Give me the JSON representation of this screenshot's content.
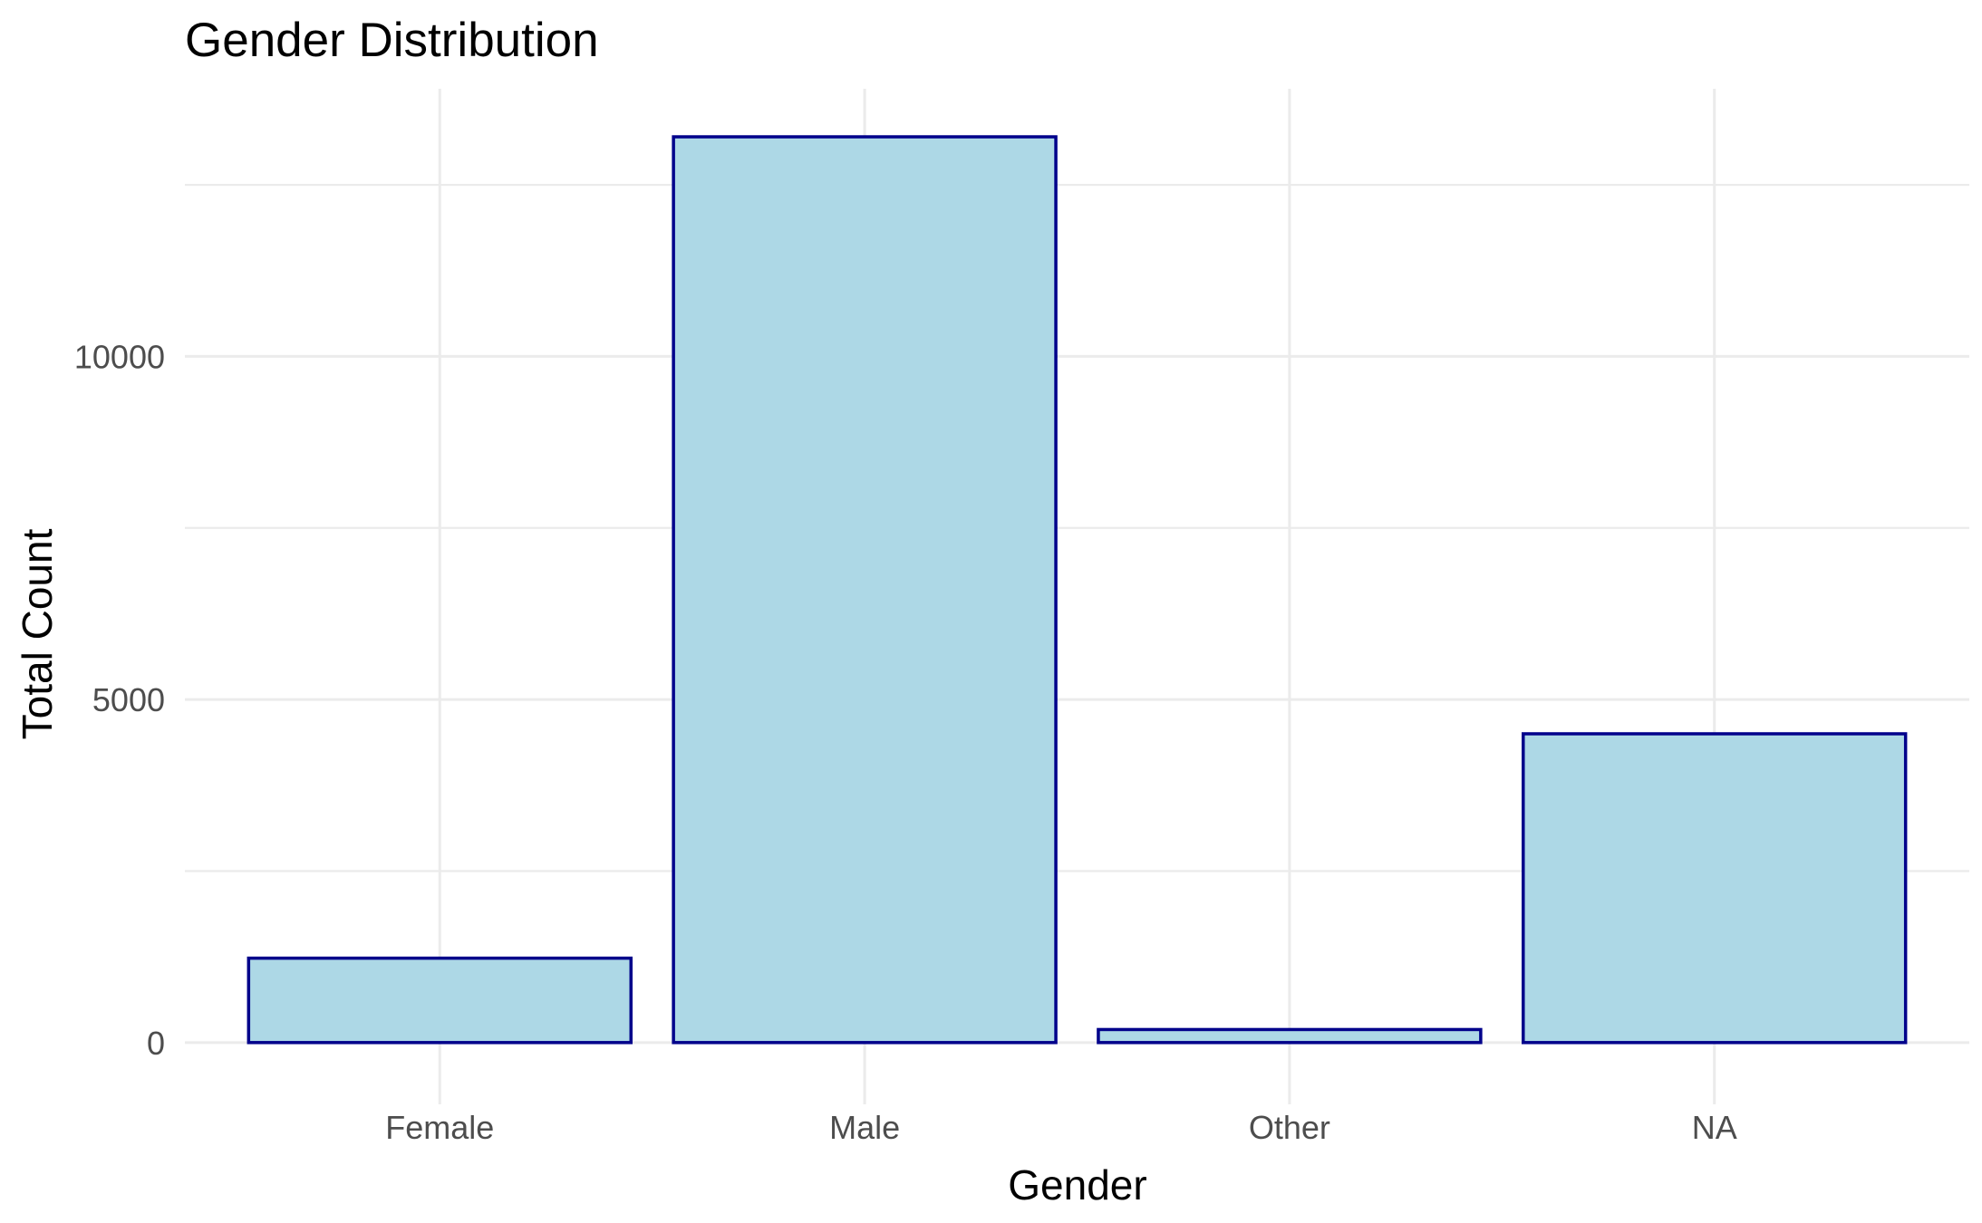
{
  "chart_data": {
    "type": "bar",
    "title": "Gender Distribution",
    "xlabel": "Gender",
    "ylabel": "Total Count",
    "categories": [
      "Female",
      "Male",
      "Other",
      "NA"
    ],
    "values": [
      1230,
      13200,
      190,
      4500
    ],
    "ylim": [
      -900,
      13900
    ],
    "yticks": [
      0,
      5000,
      10000
    ],
    "ytick_labels": [
      "0",
      "5000",
      "10000"
    ],
    "minor_yticks": [
      2500,
      7500,
      12500
    ],
    "grid": true,
    "legend": "none",
    "colors": {
      "bar_fill": "#add8e6",
      "bar_stroke": "#00008b",
      "grid": "#ebebeb",
      "tick_text": "#4d4d4d",
      "text": "#000000"
    }
  }
}
